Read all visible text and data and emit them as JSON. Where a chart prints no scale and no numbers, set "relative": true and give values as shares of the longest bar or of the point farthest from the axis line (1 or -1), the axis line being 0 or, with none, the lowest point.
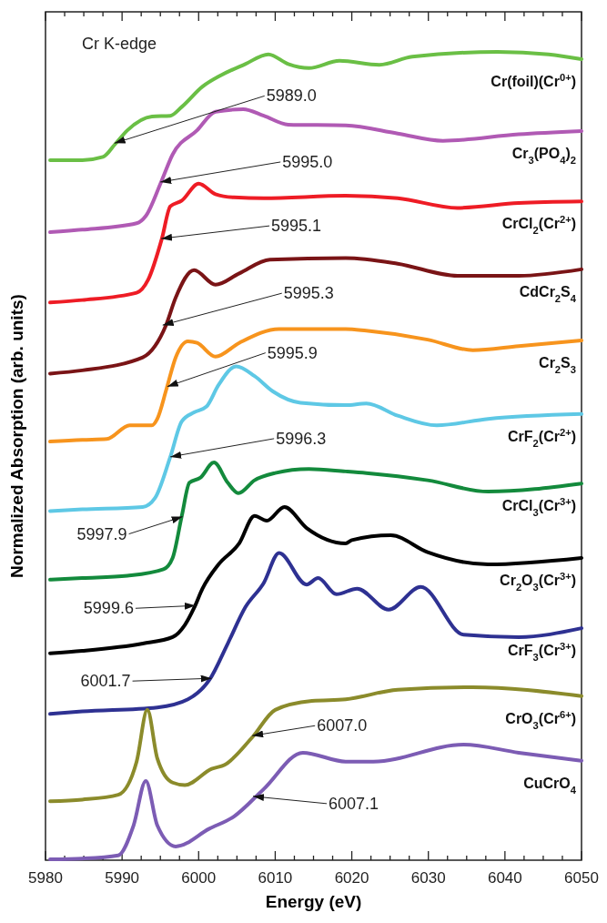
{
  "chart_data": {
    "type": "line",
    "relative": true,
    "xlabel": "Energy (eV)",
    "ylabel": "Normalized Absorption (arb. units)",
    "xlim": [
      5980,
      6050
    ],
    "xticks": [
      5980,
      {
        "value": 5982.5,
        "label": null
      },
      {
        "value": 5985,
        "label": null
      },
      {
        "value": 5987.5,
        "label": null
      },
      5990,
      {
        "value": 5992.5,
        "label": null
      },
      {
        "value": 5995,
        "label": null
      },
      {
        "value": 5997.5,
        "label": null
      },
      6000,
      {
        "value": 6002.5,
        "label": null
      },
      {
        "value": 6005,
        "label": null
      },
      {
        "value": 6007.5,
        "label": null
      },
      6010,
      {
        "value": 6012.5,
        "label": null
      },
      {
        "value": 6015,
        "label": null
      },
      {
        "value": 6017.5,
        "label": null
      },
      6020,
      {
        "value": 6022.5,
        "label": null
      },
      {
        "value": 6025,
        "label": null
      },
      {
        "value": 6027.5,
        "label": null
      },
      6030,
      {
        "value": 6032.5,
        "label": null
      },
      {
        "value": 6035,
        "label": null
      },
      {
        "value": 6037.5,
        "label": null
      },
      6040,
      {
        "value": 6042.5,
        "label": null
      },
      {
        "value": 6045,
        "label": null
      },
      {
        "value": 6047.5,
        "label": null
      },
      6050
    ],
    "series": [
      {
        "name": "Cr(foil)(Cr$^{0+}$)",
        "color": "#6abf45",
        "x": [
          5980.6,
          5984.8,
          5987.5,
          5989.1,
          5990.7,
          5993.9,
          5996.3,
          5997.8,
          6000.5,
          6002.9,
          6006.1,
          6009.1,
          6011.7,
          6014.4,
          6018.4,
          6023.6,
          6027.9,
          6039,
          6045.7,
          6050
        ],
        "values": [
          0.866,
          0.866,
          0.87,
          0.886,
          0.903,
          0.92,
          0.921,
          0.932,
          0.957,
          0.971,
          0.985,
          0.997,
          0.985,
          0.98,
          0.989,
          0.984,
          0.994,
          1.0,
          0.997,
          0.991
        ]
      },
      {
        "name": "Cr$_{3}$(PO$_{4}$)$_{2}$",
        "color": "#b05ab4",
        "x": [
          5980.6,
          5984.8,
          5991.9,
          5993.1,
          5995.1,
          5996.6,
          5999.8,
          6002.2,
          6005.8,
          6008.5,
          6011.7,
          6019.2,
          6026,
          6031.9,
          6041.8,
          6050
        ],
        "values": [
          0.777,
          0.78,
          0.788,
          0.797,
          0.839,
          0.873,
          0.903,
          0.926,
          0.929,
          0.921,
          0.91,
          0.909,
          0.899,
          0.89,
          0.898,
          0.902
        ]
      },
      {
        "name": "CrCl$_{2}$(Cr$^{2+}$)",
        "color": "#ee1c25",
        "x": [
          5980.6,
          5984.8,
          5991.9,
          5993.4,
          5995.2,
          5996.3,
          5997.8,
          6000,
          6002.2,
          6004.6,
          6008.5,
          6019.2,
          6026,
          6033.8,
          6041.8,
          6050
        ],
        "values": [
          0.69,
          0.693,
          0.702,
          0.718,
          0.769,
          0.809,
          0.816,
          0.837,
          0.824,
          0.82,
          0.819,
          0.822,
          0.819,
          0.807,
          0.813,
          0.815
        ]
      },
      {
        "name": "CdCr$_{2}$S$_{4}$",
        "color": "#7a1416",
        "x": [
          5980.6,
          5984.8,
          5992.7,
          5994.3,
          5995.7,
          5997,
          5999.4,
          6002.2,
          6005.3,
          6009.3,
          6019.2,
          6026,
          6033.8,
          6041.8,
          6050
        ],
        "values": [
          0.602,
          0.606,
          0.622,
          0.636,
          0.661,
          0.696,
          0.73,
          0.712,
          0.726,
          0.743,
          0.745,
          0.738,
          0.723,
          0.723,
          0.731
        ]
      },
      {
        "name": "Cr$_{2}$S$_{3}$",
        "color": "#f7941d",
        "x": [
          5980.6,
          5984.8,
          5988,
          5991,
          5993.9,
          5994.6,
          5995.8,
          5997,
          5998.6,
          5999.8,
          6002.2,
          6005.3,
          6010.5,
          6019.2,
          6021.9,
          6029.9,
          6035.8,
          6041.8,
          6050
        ],
        "values": [
          0.518,
          0.52,
          0.521,
          0.538,
          0.538,
          0.546,
          0.583,
          0.622,
          0.642,
          0.64,
          0.623,
          0.64,
          0.657,
          0.657,
          0.655,
          0.644,
          0.631,
          0.636,
          0.643
        ]
      },
      {
        "name": "CrF$_{2}$(Cr$^{2+}$)",
        "color": "#5ec8e5",
        "x": [
          5980.6,
          5984.8,
          5992.7,
          5994.3,
          5996.3,
          5997.8,
          5999.4,
          6001,
          6002.6,
          6004.9,
          6007.3,
          6009.7,
          6013.3,
          6019.2,
          6021.9,
          6026,
          6031.1,
          6037.8,
          6050
        ],
        "values": [
          0.432,
          0.434,
          0.437,
          0.448,
          0.499,
          0.543,
          0.554,
          0.561,
          0.588,
          0.611,
          0.599,
          0.58,
          0.566,
          0.563,
          0.565,
          0.55,
          0.538,
          0.546,
          0.552
        ]
      },
      {
        "name": "CrCl$_{3}$(Cr$^{3+}$)",
        "color": "#138a3c",
        "x": [
          5980.6,
          5984.8,
          5990.7,
          5995.4,
          5996.6,
          5997.8,
          5998.8,
          6000.2,
          6002,
          6003.8,
          6005.2,
          6007.3,
          6010,
          6014.4,
          6019.2,
          6021.9,
          6029.9,
          6037.8,
          6050
        ],
        "values": [
          0.347,
          0.349,
          0.352,
          0.36,
          0.374,
          0.426,
          0.467,
          0.473,
          0.492,
          0.467,
          0.454,
          0.47,
          0.479,
          0.484,
          0.481,
          0.479,
          0.47,
          0.456,
          0.466
        ]
      },
      {
        "name": "Cr$_{2}$O$_{3}$(Cr$^{3+}$)",
        "color": "#000000",
        "x": [
          5980.6,
          5984.8,
          5992.7,
          5996.6,
          5998.2,
          5999.4,
          6000.5,
          6002.6,
          6005.3,
          6007.3,
          6008.9,
          6011.2,
          6014.1,
          6019.2,
          6020,
          6025.1,
          6029.9,
          6037.8,
          6050
        ],
        "values": [
          0.256,
          0.259,
          0.268,
          0.276,
          0.291,
          0.312,
          0.336,
          0.366,
          0.392,
          0.426,
          0.42,
          0.437,
          0.411,
          0.392,
          0.396,
          0.402,
          0.381,
          0.366,
          0.374
        ]
      },
      {
        "name": "CrF$_{3}$(Cr$^{3+}$)",
        "color": "#2e3192",
        "x": [
          5980.6,
          5984.8,
          5994.6,
          5998.6,
          6001.4,
          6003.8,
          6006.1,
          6008.5,
          6010.5,
          6014.1,
          6015.6,
          6018,
          6020.7,
          6024.8,
          6029,
          6034.6,
          6041.8,
          6050
        ],
        "values": [
          0.181,
          0.184,
          0.189,
          0.199,
          0.223,
          0.268,
          0.313,
          0.343,
          0.38,
          0.341,
          0.349,
          0.329,
          0.336,
          0.31,
          0.338,
          0.279,
          0.276,
          0.287
        ]
      },
      {
        "name": "CrO$_{3}$(Cr$^{6+}$)",
        "color": "#8b8b2b",
        "x": [
          5980.6,
          5984.8,
          5989.5,
          5991.9,
          5993.3,
          5994.6,
          5996.6,
          5998.2,
          6001.7,
          6003.4,
          6007,
          6010,
          6014.8,
          6019.2,
          6026,
          6035.8,
          6050
        ],
        "values": [
          0.073,
          0.075,
          0.081,
          0.122,
          0.186,
          0.126,
          0.096,
          0.093,
          0.113,
          0.118,
          0.152,
          0.186,
          0.197,
          0.199,
          0.211,
          0.214,
          0.203
        ]
      },
      {
        "name": "CuCrO$_{4}$",
        "color": "#7c5cb4",
        "x": [
          5980.6,
          5984.8,
          5989.5,
          5991.5,
          5993.1,
          5994.6,
          5997,
          6001.4,
          6004.6,
          6008.5,
          6013.6,
          6019.2,
          6022.8,
          6034.6,
          6041.8,
          6050
        ],
        "values": [
          0.001,
          0.002,
          0.006,
          0.043,
          0.098,
          0.043,
          0.017,
          0.039,
          0.054,
          0.088,
          0.133,
          0.122,
          0.122,
          0.143,
          0.133,
          0.123
        ]
      }
    ],
    "annotations": [
      "Cr K-edge",
      {
        "text": "5989.0",
        "x": 5989.0,
        "y": 0.887
      },
      {
        "text": "5995.0",
        "x": 5995.0,
        "y": 0.839
      },
      {
        "text": "5995.1",
        "x": 5995.1,
        "y": 0.769
      },
      {
        "text": "5995.3",
        "x": 5995.3,
        "y": 0.662
      },
      {
        "text": "5995.9",
        "x": 5995.9,
        "y": 0.586
      },
      {
        "text": "5996.3",
        "x": 5996.3,
        "y": 0.499
      },
      {
        "text": "5997.9",
        "x": 5997.9,
        "y": 0.425
      },
      {
        "text": "5999.6",
        "x": 5999.6,
        "y": 0.315
      },
      {
        "text": "6001.7",
        "x": 6001.7,
        "y": 0.225
      },
      {
        "text": "6007.0",
        "x": 6007.0,
        "y": 0.154
      },
      {
        "text": "6007.1",
        "x": 6007.1,
        "y": 0.079
      }
    ]
  }
}
